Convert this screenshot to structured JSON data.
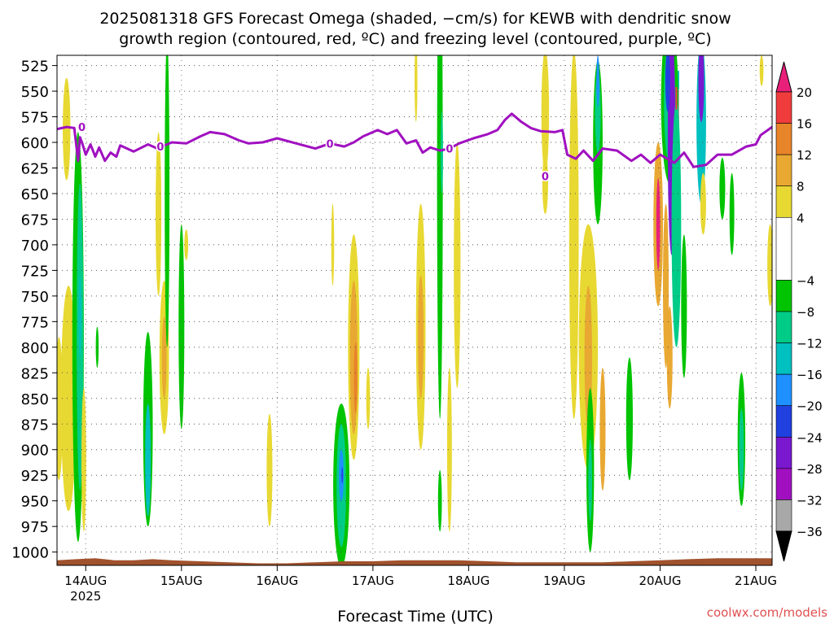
{
  "chart_data": {
    "type": "heatmap",
    "title_line1": "2025081318 GFS Forecast Omega (shaded, −cm/s) for KEWB with dendritic snow",
    "title_line2": "growth region (contoured, red, ºC) and freezing level (contoured, purple, ºC)",
    "xlabel": "Forecast Time (UTC)",
    "watermark": "coolwx.com/models",
    "x_ticks": [
      {
        "t": 0.3,
        "label": "14AUG",
        "sub": "2025"
      },
      {
        "t": 1.3,
        "label": "15AUG",
        "sub": ""
      },
      {
        "t": 2.3,
        "label": "16AUG",
        "sub": ""
      },
      {
        "t": 3.3,
        "label": "17AUG",
        "sub": ""
      },
      {
        "t": 4.3,
        "label": "18AUG",
        "sub": ""
      },
      {
        "t": 5.3,
        "label": "19AUG",
        "sub": ""
      },
      {
        "t": 6.3,
        "label": "20AUG",
        "sub": ""
      },
      {
        "t": 7.3,
        "label": "21AUG",
        "sub": ""
      }
    ],
    "xlim": [
      0,
      7.47
    ],
    "y_ticks": [
      525,
      550,
      575,
      600,
      625,
      650,
      675,
      700,
      725,
      750,
      775,
      800,
      825,
      850,
      875,
      900,
      925,
      950,
      975,
      1000
    ],
    "ylim": [
      515,
      1013
    ],
    "grid": true,
    "colorbar": {
      "labels": [
        {
          "v": 20,
          "label": "20"
        },
        {
          "v": 16,
          "label": "16"
        },
        {
          "v": 12,
          "label": "12"
        },
        {
          "v": 8,
          "label": "8"
        },
        {
          "v": 4,
          "label": "4"
        },
        {
          "v": -4,
          "label": "−4"
        },
        {
          "v": -8,
          "label": "−8"
        },
        {
          "v": -12,
          "label": "−12"
        },
        {
          "v": -16,
          "label": "−16"
        },
        {
          "v": -20,
          "label": "−20"
        },
        {
          "v": -24,
          "label": "−24"
        },
        {
          "v": -28,
          "label": "−28"
        },
        {
          "v": -32,
          "label": "−32"
        },
        {
          "v": -36,
          "label": "−36"
        }
      ],
      "bands": [
        {
          "from": 20,
          "to": 24,
          "color": "#e8207a"
        },
        {
          "from": 16,
          "to": 20,
          "color": "#f03c3c"
        },
        {
          "from": 12,
          "to": 16,
          "color": "#e8842a"
        },
        {
          "from": 8,
          "to": 12,
          "color": "#e8a832"
        },
        {
          "from": 4,
          "to": 8,
          "color": "#e8d832"
        },
        {
          "from": -4,
          "to": 4,
          "color": "#ffffff"
        },
        {
          "from": -8,
          "to": -4,
          "color": "#00c400"
        },
        {
          "from": -12,
          "to": -8,
          "color": "#00cc88"
        },
        {
          "from": -16,
          "to": -12,
          "color": "#00c0c0"
        },
        {
          "from": -20,
          "to": -16,
          "color": "#1e90ff"
        },
        {
          "from": -24,
          "to": -20,
          "color": "#2040e0"
        },
        {
          "from": -28,
          "to": -24,
          "color": "#7a18d0"
        },
        {
          "from": -32,
          "to": -28,
          "color": "#a010c0"
        },
        {
          "from": -36,
          "to": -32,
          "color": "#a8a8a8"
        },
        {
          "from": -40,
          "to": -36,
          "color": "#000000"
        }
      ]
    },
    "freezing_level": {
      "color": "#a010c0",
      "label": "0",
      "label_points": [
        [
          0.26,
          585
        ],
        [
          1.08,
          604
        ],
        [
          2.85,
          601
        ],
        [
          4.1,
          606
        ],
        [
          5.1,
          633
        ]
      ],
      "points": [
        [
          0.0,
          587
        ],
        [
          0.1,
          585
        ],
        [
          0.18,
          586
        ],
        [
          0.22,
          618
        ],
        [
          0.24,
          595
        ],
        [
          0.26,
          600
        ],
        [
          0.3,
          612
        ],
        [
          0.35,
          602
        ],
        [
          0.4,
          614
        ],
        [
          0.44,
          605
        ],
        [
          0.5,
          618
        ],
        [
          0.56,
          610
        ],
        [
          0.62,
          614
        ],
        [
          0.66,
          603
        ],
        [
          0.8,
          609
        ],
        [
          0.95,
          602
        ],
        [
          1.05,
          606
        ],
        [
          1.2,
          600
        ],
        [
          1.35,
          601
        ],
        [
          1.5,
          594
        ],
        [
          1.6,
          590
        ],
        [
          1.75,
          592
        ],
        [
          1.9,
          598
        ],
        [
          2.0,
          601
        ],
        [
          2.15,
          600
        ],
        [
          2.3,
          596
        ],
        [
          2.5,
          601
        ],
        [
          2.7,
          606
        ],
        [
          2.85,
          601
        ],
        [
          3.0,
          604
        ],
        [
          3.1,
          600
        ],
        [
          3.2,
          594
        ],
        [
          3.35,
          588
        ],
        [
          3.45,
          592
        ],
        [
          3.55,
          588
        ],
        [
          3.65,
          601
        ],
        [
          3.75,
          598
        ],
        [
          3.82,
          610
        ],
        [
          3.9,
          605
        ],
        [
          4.0,
          608
        ],
        [
          4.1,
          606
        ],
        [
          4.2,
          601
        ],
        [
          4.35,
          596
        ],
        [
          4.5,
          592
        ],
        [
          4.6,
          588
        ],
        [
          4.68,
          578
        ],
        [
          4.75,
          572
        ],
        [
          4.85,
          580
        ],
        [
          4.95,
          586
        ],
        [
          5.05,
          589
        ],
        [
          5.2,
          590
        ],
        [
          5.28,
          588
        ],
        [
          5.33,
          612
        ],
        [
          5.42,
          616
        ],
        [
          5.5,
          608
        ],
        [
          5.6,
          618
        ],
        [
          5.7,
          606
        ],
        [
          5.85,
          608
        ],
        [
          6.0,
          618
        ],
        [
          6.1,
          612
        ],
        [
          6.2,
          620
        ],
        [
          6.3,
          612
        ],
        [
          6.45,
          620
        ],
        [
          6.55,
          610
        ],
        [
          6.65,
          624
        ],
        [
          6.78,
          622
        ],
        [
          6.9,
          612
        ],
        [
          7.05,
          612
        ],
        [
          7.2,
          604
        ],
        [
          7.3,
          602
        ],
        [
          7.35,
          593
        ],
        [
          7.47,
          585
        ]
      ]
    },
    "dgz": {
      "color": "#f03c3c",
      "segment": [
        [
          6.47,
          546
        ],
        [
          6.47,
          568
        ]
      ]
    },
    "terrain_color": "#a0522d",
    "terrain": [
      [
        0.0,
        1008
      ],
      [
        0.2,
        1007
      ],
      [
        0.4,
        1006
      ],
      [
        0.6,
        1008
      ],
      [
        0.8,
        1008
      ],
      [
        1.0,
        1007
      ],
      [
        1.2,
        1008
      ],
      [
        1.5,
        1009
      ],
      [
        1.8,
        1010
      ],
      [
        2.1,
        1011
      ],
      [
        2.4,
        1011
      ],
      [
        2.7,
        1010
      ],
      [
        3.0,
        1009
      ],
      [
        3.3,
        1009
      ],
      [
        3.6,
        1008
      ],
      [
        3.9,
        1008
      ],
      [
        4.2,
        1008
      ],
      [
        4.5,
        1009
      ],
      [
        4.8,
        1010
      ],
      [
        5.1,
        1010
      ],
      [
        5.4,
        1010
      ],
      [
        5.7,
        1010
      ],
      [
        6.0,
        1009
      ],
      [
        6.3,
        1008
      ],
      [
        6.6,
        1007
      ],
      [
        6.9,
        1006
      ],
      [
        7.2,
        1006
      ],
      [
        7.47,
        1006
      ]
    ],
    "cells": [
      {
        "x": 0.1,
        "y": 587,
        "rx": 0.04,
        "ry": 50,
        "color": "#e8d832"
      },
      {
        "x": 0.12,
        "y": 850,
        "rx": 0.08,
        "ry": 110,
        "color": "#e8d832"
      },
      {
        "x": 0.02,
        "y": 860,
        "rx": 0.04,
        "ry": 70,
        "color": "#e8d832"
      },
      {
        "x": 0.22,
        "y": 790,
        "rx": 0.06,
        "ry": 200,
        "color": "#00c400"
      },
      {
        "x": 0.24,
        "y": 790,
        "rx": 0.035,
        "ry": 150,
        "color": "#00cc88"
      },
      {
        "x": 0.24,
        "y": 770,
        "rx": 0.015,
        "ry": 40,
        "color": "#00c0c0"
      },
      {
        "x": 0.28,
        "y": 910,
        "rx": 0.025,
        "ry": 70,
        "color": "#e8d832"
      },
      {
        "x": 0.42,
        "y": 800,
        "rx": 0.015,
        "ry": 20,
        "color": "#00c400"
      },
      {
        "x": 0.95,
        "y": 880,
        "rx": 0.05,
        "ry": 95,
        "color": "#00c400"
      },
      {
        "x": 0.95,
        "y": 910,
        "rx": 0.03,
        "ry": 55,
        "color": "#00c0c0"
      },
      {
        "x": 1.12,
        "y": 810,
        "rx": 0.05,
        "ry": 75,
        "color": "#e8d832"
      },
      {
        "x": 1.12,
        "y": 810,
        "rx": 0.025,
        "ry": 40,
        "color": "#e8a832"
      },
      {
        "x": 1.06,
        "y": 670,
        "rx": 0.03,
        "ry": 80,
        "color": "#e8d832"
      },
      {
        "x": 1.15,
        "y": 650,
        "rx": 0.025,
        "ry": 150,
        "color": "#00c400"
      },
      {
        "x": 1.3,
        "y": 780,
        "rx": 0.03,
        "ry": 100,
        "color": "#00c400"
      },
      {
        "x": 1.35,
        "y": 700,
        "rx": 0.02,
        "ry": 15,
        "color": "#e8d832"
      },
      {
        "x": 2.22,
        "y": 920,
        "rx": 0.03,
        "ry": 55,
        "color": "#e8d832"
      },
      {
        "x": 3.1,
        "y": 800,
        "rx": 0.06,
        "ry": 110,
        "color": "#e8d832"
      },
      {
        "x": 3.1,
        "y": 810,
        "rx": 0.04,
        "ry": 75,
        "color": "#e8a832"
      },
      {
        "x": 3.12,
        "y": 830,
        "rx": 0.02,
        "ry": 35,
        "color": "#e8842a"
      },
      {
        "x": 2.97,
        "y": 935,
        "rx": 0.085,
        "ry": 80,
        "color": "#00c400"
      },
      {
        "x": 2.97,
        "y": 935,
        "rx": 0.05,
        "ry": 60,
        "color": "#00cc88"
      },
      {
        "x": 2.97,
        "y": 925,
        "rx": 0.025,
        "ry": 25,
        "color": "#1e90ff"
      },
      {
        "x": 2.98,
        "y": 925,
        "rx": 0.008,
        "ry": 8,
        "color": "#2040e0"
      },
      {
        "x": 3.25,
        "y": 850,
        "rx": 0.02,
        "ry": 30,
        "color": "#e8d832"
      },
      {
        "x": 2.88,
        "y": 700,
        "rx": 0.015,
        "ry": 40,
        "color": "#e8d832"
      },
      {
        "x": 3.8,
        "y": 780,
        "rx": 0.05,
        "ry": 120,
        "color": "#e8d832"
      },
      {
        "x": 3.8,
        "y": 790,
        "rx": 0.03,
        "ry": 60,
        "color": "#e8a832"
      },
      {
        "x": 4.0,
        "y": 630,
        "rx": 0.03,
        "ry": 240,
        "color": "#00c400"
      },
      {
        "x": 4.02,
        "y": 610,
        "rx": 0.012,
        "ry": 40,
        "color": "#00cc88"
      },
      {
        "x": 4.18,
        "y": 720,
        "rx": 0.035,
        "ry": 120,
        "color": "#e8d832"
      },
      {
        "x": 4.1,
        "y": 900,
        "rx": 0.025,
        "ry": 80,
        "color": "#e8d832"
      },
      {
        "x": 4.0,
        "y": 950,
        "rx": 0.02,
        "ry": 30,
        "color": "#00c400"
      },
      {
        "x": 3.75,
        "y": 540,
        "rx": 0.015,
        "ry": 40,
        "color": "#e8d832"
      },
      {
        "x": 5.1,
        "y": 570,
        "rx": 0.04,
        "ry": 60,
        "color": "#e8d832"
      },
      {
        "x": 5.1,
        "y": 640,
        "rx": 0.03,
        "ry": 30,
        "color": "#e8d832"
      },
      {
        "x": 5.4,
        "y": 690,
        "rx": 0.05,
        "ry": 180,
        "color": "#e8d832"
      },
      {
        "x": 5.55,
        "y": 800,
        "rx": 0.1,
        "ry": 120,
        "color": "#e8d832"
      },
      {
        "x": 5.55,
        "y": 810,
        "rx": 0.04,
        "ry": 70,
        "color": "#e8a832"
      },
      {
        "x": 5.7,
        "y": 880,
        "rx": 0.03,
        "ry": 60,
        "color": "#e8a832"
      },
      {
        "x": 5.57,
        "y": 920,
        "rx": 0.04,
        "ry": 80,
        "color": "#00c400"
      },
      {
        "x": 5.57,
        "y": 930,
        "rx": 0.02,
        "ry": 40,
        "color": "#00cc88"
      },
      {
        "x": 5.65,
        "y": 600,
        "rx": 0.05,
        "ry": 80,
        "color": "#00c400"
      },
      {
        "x": 5.65,
        "y": 570,
        "rx": 0.03,
        "ry": 40,
        "color": "#00cc88"
      },
      {
        "x": 5.65,
        "y": 540,
        "rx": 0.015,
        "ry": 25,
        "color": "#1e90ff"
      },
      {
        "x": 5.98,
        "y": 870,
        "rx": 0.035,
        "ry": 60,
        "color": "#00c400"
      },
      {
        "x": 6.4,
        "y": 560,
        "rx": 0.09,
        "ry": 80,
        "color": "#00c400"
      },
      {
        "x": 6.4,
        "y": 560,
        "rx": 0.06,
        "ry": 60,
        "color": "#00cc88"
      },
      {
        "x": 6.42,
        "y": 600,
        "rx": 0.04,
        "ry": 110,
        "color": "#7a18d0"
      },
      {
        "x": 6.38,
        "y": 540,
        "rx": 0.025,
        "ry": 30,
        "color": "#2040e0"
      },
      {
        "x": 6.28,
        "y": 680,
        "rx": 0.05,
        "ry": 80,
        "color": "#e8a832"
      },
      {
        "x": 6.28,
        "y": 680,
        "rx": 0.02,
        "ry": 45,
        "color": "#e8207a"
      },
      {
        "x": 6.36,
        "y": 740,
        "rx": 0.03,
        "ry": 80,
        "color": "#e8a832"
      },
      {
        "x": 6.47,
        "y": 680,
        "rx": 0.05,
        "ry": 120,
        "color": "#00cc88"
      },
      {
        "x": 6.55,
        "y": 760,
        "rx": 0.03,
        "ry": 70,
        "color": "#00c400"
      },
      {
        "x": 6.4,
        "y": 810,
        "rx": 0.03,
        "ry": 50,
        "color": "#e8a832"
      },
      {
        "x": 6.73,
        "y": 580,
        "rx": 0.05,
        "ry": 80,
        "color": "#00c0c0"
      },
      {
        "x": 6.73,
        "y": 540,
        "rx": 0.03,
        "ry": 40,
        "color": "#7a18d0"
      },
      {
        "x": 6.75,
        "y": 660,
        "rx": 0.03,
        "ry": 30,
        "color": "#e8d832"
      },
      {
        "x": 6.95,
        "y": 645,
        "rx": 0.03,
        "ry": 30,
        "color": "#00c400"
      },
      {
        "x": 7.05,
        "y": 670,
        "rx": 0.025,
        "ry": 40,
        "color": "#00c400"
      },
      {
        "x": 7.15,
        "y": 890,
        "rx": 0.04,
        "ry": 65,
        "color": "#00c400"
      },
      {
        "x": 7.15,
        "y": 900,
        "rx": 0.025,
        "ry": 40,
        "color": "#00cc88"
      },
      {
        "x": 7.45,
        "y": 720,
        "rx": 0.03,
        "ry": 40,
        "color": "#e8d832"
      },
      {
        "x": 7.36,
        "y": 530,
        "rx": 0.02,
        "ry": 15,
        "color": "#e8d832"
      }
    ],
    "columns": [
      {
        "x0": 6.44,
        "x1": 6.5,
        "y0": 540,
        "y1": 610,
        "color": "#a8a8a8"
      },
      {
        "x0": 6.43,
        "x1": 6.5,
        "y0": 530,
        "y1": 548,
        "color": "#00c0c0"
      }
    ]
  }
}
